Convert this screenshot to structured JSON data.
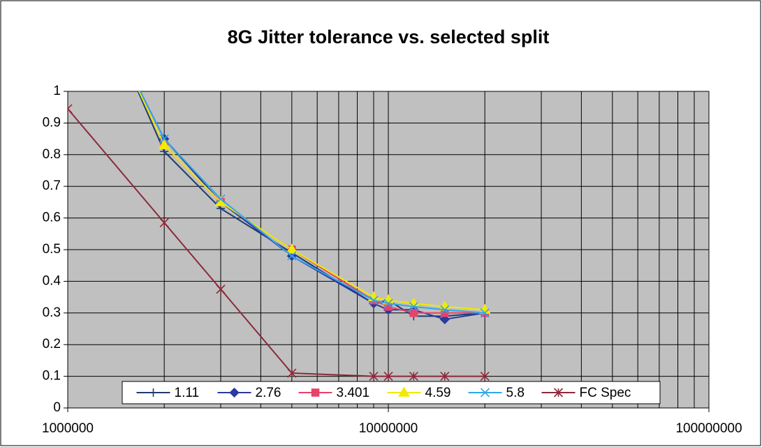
{
  "chart_data": {
    "type": "line",
    "title": "8G Jitter tolerance vs. selected split",
    "xscale": "log",
    "xlim": [
      1000000,
      100000000
    ],
    "xticks": [
      1000000,
      10000000,
      100000000
    ],
    "ylim": [
      0,
      1
    ],
    "yticks": [
      0,
      0.1,
      0.2,
      0.3,
      0.4,
      0.5,
      0.6,
      0.7,
      0.8,
      0.9,
      1
    ],
    "grid": true,
    "legend": "bottom",
    "series": [
      {
        "name": "1.11",
        "color": "#1f3a6e",
        "marker": "plus",
        "x": [
          1500000,
          2000000,
          3000000,
          5000000,
          9000000,
          10000000,
          12000000,
          15000000,
          20000000
        ],
        "values": [
          1.1,
          0.81,
          0.63,
          0.49,
          0.33,
          0.34,
          0.29,
          0.29,
          0.3
        ]
      },
      {
        "name": "2.76",
        "color": "#2b3a9c",
        "marker": "diamond",
        "x": [
          1500000,
          2000000,
          3000000,
          5000000,
          9000000,
          10000000,
          12000000,
          15000000,
          20000000
        ],
        "values": [
          1.1,
          0.85,
          0.65,
          0.48,
          0.33,
          0.31,
          0.31,
          0.28,
          0.3
        ]
      },
      {
        "name": "3.401",
        "color": "#e8416a",
        "marker": "square",
        "x": [
          1500000,
          2000000,
          3000000,
          5000000,
          9000000,
          10000000,
          12000000,
          15000000,
          20000000
        ],
        "values": [
          1.1,
          0.83,
          0.65,
          0.5,
          0.34,
          0.32,
          0.3,
          0.3,
          0.3
        ]
      },
      {
        "name": "4.59",
        "color": "#f2ea00",
        "marker": "triangle",
        "x": [
          1500000,
          2000000,
          3000000,
          5000000,
          9000000,
          10000000,
          12000000,
          15000000,
          20000000
        ],
        "values": [
          1.1,
          0.83,
          0.65,
          0.5,
          0.35,
          0.34,
          0.33,
          0.32,
          0.31
        ]
      },
      {
        "name": "5.8",
        "color": "#33a5e8",
        "marker": "x",
        "x": [
          1500000,
          2000000,
          3000000,
          5000000,
          9000000,
          10000000,
          12000000,
          15000000,
          20000000
        ],
        "values": [
          1.1,
          0.85,
          0.66,
          0.48,
          0.34,
          0.33,
          0.32,
          0.31,
          0.3
        ]
      },
      {
        "name": "FC Spec",
        "color": "#8b2a3a",
        "marker": "star",
        "x": [
          1000000,
          2000000,
          3000000,
          5000000,
          9000000,
          10000000,
          12000000,
          15000000,
          20000000
        ],
        "values": [
          0.945,
          0.585,
          0.375,
          0.11,
          0.1,
          0.1,
          0.1,
          0.1,
          0.1
        ]
      }
    ]
  }
}
